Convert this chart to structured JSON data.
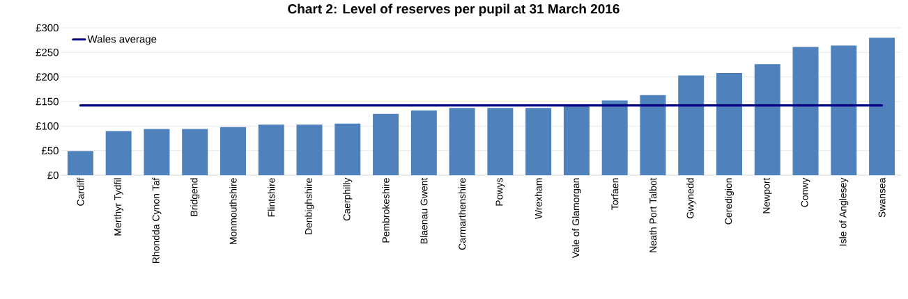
{
  "chart_data": {
    "type": "bar",
    "title": "Chart 2: Level of reserves per pupil at 31 March 2016",
    "categories": [
      "Cardiff",
      "Merthyr Tydfil",
      "Rhondda Cynon Taf",
      "Bridgend",
      "Monmouthshire",
      "Flintshire",
      "Denbighshire",
      "Caerphilly",
      "Pembrokeshire",
      "Blaenau Gwent",
      "Carmarthenshire",
      "Powys",
      "Wrexham",
      "Vale of Glamorgan",
      "Torfaen",
      "Neath Port Talbot",
      "Gwynedd",
      "Ceredigion",
      "Newport",
      "Conwy",
      "Isle of Anglesey",
      "Swansea"
    ],
    "series": [
      {
        "color": "#4f81bd",
        "values": [
          49,
          90,
          94,
          94,
          98,
          103,
          103,
          105,
          125,
          132,
          137,
          137,
          137,
          141,
          152,
          163,
          203,
          208,
          226,
          261,
          264,
          280
        ]
      },
      {
        "type": "line",
        "name": "Wales average",
        "color": "#000080",
        "values": [
          142,
          142,
          142,
          142,
          142,
          142,
          142,
          142,
          142,
          142,
          142,
          142,
          142,
          142,
          142,
          142,
          142,
          142,
          142,
          142,
          142,
          142
        ]
      }
    ],
    "ylim": [
      0,
      300
    ],
    "yticks": [
      {
        "value": 0,
        "label": "£0"
      },
      {
        "value": 50,
        "label": "£50"
      },
      {
        "value": 100,
        "label": "£100"
      },
      {
        "value": 150,
        "label": "£150"
      },
      {
        "value": 200,
        "label": "£200"
      },
      {
        "value": 250,
        "label": "£250"
      },
      {
        "value": 300,
        "label": "£300"
      }
    ],
    "grid": "y",
    "legend": "top left"
  }
}
